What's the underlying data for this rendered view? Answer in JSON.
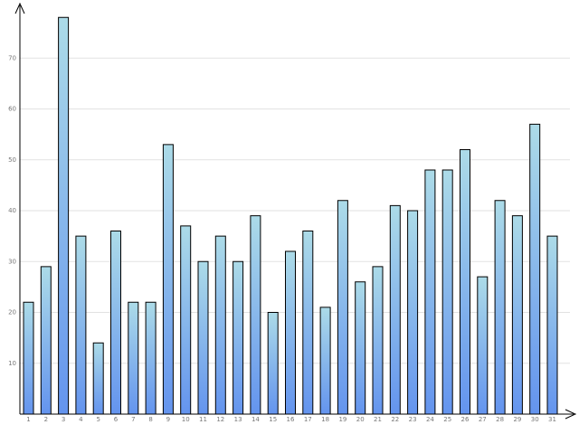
{
  "chart_data": {
    "type": "bar",
    "categories": [
      "1",
      "2",
      "3",
      "4",
      "5",
      "6",
      "7",
      "8",
      "9",
      "10",
      "11",
      "12",
      "13",
      "14",
      "15",
      "16",
      "17",
      "18",
      "19",
      "20",
      "21",
      "22",
      "23",
      "24",
      "25",
      "26",
      "27",
      "28",
      "29",
      "30",
      "31"
    ],
    "values": [
      22,
      29,
      78,
      35,
      14,
      36,
      22,
      22,
      53,
      37,
      30,
      35,
      30,
      39,
      20,
      32,
      36,
      21,
      42,
      26,
      29,
      41,
      40,
      48,
      48,
      52,
      27,
      42,
      39,
      57,
      35
    ],
    "color": [
      "#acdbe8",
      "#6494ee"
    ],
    "ylim": [
      0,
      80
    ],
    "yticks": [
      10,
      20,
      30,
      40,
      50,
      60,
      70
    ],
    "grid": true
  }
}
